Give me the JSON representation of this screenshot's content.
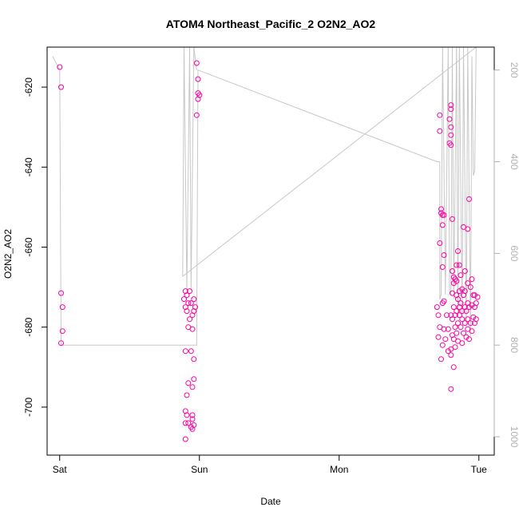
{
  "chart_data": {
    "type": "scatter",
    "title": "ATOM4 Northeast_Pacific_2 O2N2_AO2",
    "xlabel": "Date",
    "ylabel": "O2N2_AO2",
    "x_ticks": [
      {
        "label": "Sat",
        "value": 0
      },
      {
        "label": "Sun",
        "value": 1
      },
      {
        "label": "Mon",
        "value": 2
      },
      {
        "label": "Tue",
        "value": 3
      }
    ],
    "xlim": [
      -0.09,
      3.11
    ],
    "ylim": [
      -712,
      -610
    ],
    "y_ticks": [
      -620,
      -640,
      -660,
      -680,
      -700
    ],
    "right_axis": {
      "ylim": [
        1040,
        150
      ],
      "ticks": [
        200,
        400,
        600,
        800,
        1000
      ],
      "color": "#b0b0b0"
    },
    "colors": {
      "points": "#ff00a0",
      "line": "#c8c8c8",
      "axis": "#000000",
      "right_axis": "#b0b0b0"
    },
    "series": [
      {
        "kind": "points",
        "points": [
          [
            0.0,
            -615
          ],
          [
            0.01,
            -620
          ],
          [
            0.01,
            -671.5
          ],
          [
            0.02,
            -675
          ],
          [
            0.02,
            -681
          ],
          [
            0.01,
            -684
          ],
          [
            0.9,
            -671
          ],
          [
            0.91,
            -672
          ],
          [
            0.89,
            -673
          ],
          [
            0.92,
            -674
          ],
          [
            0.9,
            -675
          ],
          [
            0.91,
            -676
          ],
          [
            0.93,
            -671
          ],
          [
            0.94,
            -674
          ],
          [
            0.95,
            -677
          ],
          [
            0.93,
            -678
          ],
          [
            0.96,
            -676
          ],
          [
            0.97,
            -675
          ],
          [
            0.96,
            -673
          ],
          [
            0.92,
            -680
          ],
          [
            0.95,
            -680.5
          ],
          [
            0.9,
            -686
          ],
          [
            0.94,
            -686
          ],
          [
            0.96,
            -688
          ],
          [
            0.92,
            -694
          ],
          [
            0.96,
            -693
          ],
          [
            0.95,
            -695
          ],
          [
            0.91,
            -697
          ],
          [
            0.9,
            -701
          ],
          [
            0.91,
            -702
          ],
          [
            0.95,
            -702
          ],
          [
            0.95,
            -703
          ],
          [
            0.9,
            -704
          ],
          [
            0.92,
            -704
          ],
          [
            0.94,
            -705
          ],
          [
            0.96,
            -704.5
          ],
          [
            0.95,
            -705.5
          ],
          [
            0.9,
            -708
          ],
          [
            0.98,
            -614
          ],
          [
            0.99,
            -618
          ],
          [
            0.99,
            -621.5
          ],
          [
            1.0,
            -622
          ],
          [
            0.99,
            -623
          ],
          [
            0.98,
            -627
          ],
          [
            2.72,
            -627
          ],
          [
            2.72,
            -631
          ],
          [
            2.8,
            -624.5
          ],
          [
            2.8,
            -625.5
          ],
          [
            2.79,
            -628
          ],
          [
            2.8,
            -630
          ],
          [
            2.8,
            -632
          ],
          [
            2.79,
            -634
          ],
          [
            2.8,
            -634.5
          ],
          [
            2.73,
            -650.5
          ],
          [
            2.73,
            -651.5
          ],
          [
            2.74,
            -652
          ],
          [
            2.75,
            -652
          ],
          [
            2.74,
            -654.5
          ],
          [
            2.72,
            -659
          ],
          [
            2.75,
            -662
          ],
          [
            2.74,
            -665
          ],
          [
            2.81,
            -653
          ],
          [
            2.85,
            -661
          ],
          [
            2.89,
            -655
          ],
          [
            2.93,
            -648
          ],
          [
            2.92,
            -655.5
          ],
          [
            2.84,
            -664.5
          ],
          [
            2.86,
            -664.5
          ],
          [
            2.9,
            -666
          ],
          [
            2.81,
            -666
          ],
          [
            2.82,
            -667.5
          ],
          [
            2.87,
            -667
          ],
          [
            2.83,
            -668
          ],
          [
            2.84,
            -668.5
          ],
          [
            2.95,
            -668
          ],
          [
            2.82,
            -669
          ],
          [
            2.92,
            -669
          ],
          [
            2.94,
            -670
          ],
          [
            2.88,
            -670.5
          ],
          [
            2.86,
            -671
          ],
          [
            2.81,
            -671.5
          ],
          [
            2.9,
            -671
          ],
          [
            2.84,
            -672
          ],
          [
            2.89,
            -672
          ],
          [
            2.96,
            -672
          ],
          [
            2.97,
            -672
          ],
          [
            2.99,
            -672.5
          ],
          [
            2.75,
            -673.5
          ],
          [
            2.74,
            -674
          ],
          [
            2.85,
            -673
          ],
          [
            2.87,
            -674
          ],
          [
            2.92,
            -674
          ],
          [
            2.95,
            -674.5
          ],
          [
            2.98,
            -674
          ],
          [
            2.82,
            -675
          ],
          [
            2.86,
            -675
          ],
          [
            2.9,
            -675
          ],
          [
            2.93,
            -675
          ],
          [
            2.97,
            -675
          ],
          [
            2.84,
            -676
          ],
          [
            2.88,
            -676
          ],
          [
            2.91,
            -676
          ],
          [
            2.7,
            -675
          ],
          [
            2.71,
            -677
          ],
          [
            2.77,
            -677
          ],
          [
            2.8,
            -677
          ],
          [
            2.83,
            -677
          ],
          [
            2.86,
            -677
          ],
          [
            2.88,
            -678
          ],
          [
            2.92,
            -678
          ],
          [
            2.96,
            -677.5
          ],
          [
            2.98,
            -678
          ],
          [
            2.81,
            -678
          ],
          [
            2.85,
            -679
          ],
          [
            2.9,
            -679
          ],
          [
            2.94,
            -679
          ],
          [
            2.97,
            -679
          ],
          [
            2.72,
            -680
          ],
          [
            2.75,
            -680.5
          ],
          [
            2.78,
            -680.5
          ],
          [
            2.83,
            -680
          ],
          [
            2.87,
            -680
          ],
          [
            2.92,
            -680.5
          ],
          [
            2.95,
            -681
          ],
          [
            2.89,
            -681.5
          ],
          [
            2.84,
            -681.5
          ],
          [
            2.81,
            -682
          ],
          [
            2.71,
            -682.5
          ],
          [
            2.91,
            -682.5
          ],
          [
            2.93,
            -683
          ],
          [
            2.82,
            -683
          ],
          [
            2.76,
            -683
          ],
          [
            2.74,
            -684.5
          ],
          [
            2.85,
            -683.5
          ],
          [
            2.88,
            -684
          ],
          [
            2.8,
            -685.5
          ],
          [
            2.83,
            -685
          ],
          [
            2.78,
            -686
          ],
          [
            2.8,
            -687
          ],
          [
            2.73,
            -688
          ],
          [
            2.82,
            -690
          ],
          [
            2.8,
            -695.5
          ]
        ]
      },
      {
        "kind": "line",
        "axis": "right",
        "points": [
          [
            -0.05,
            170
          ],
          [
            0.0,
            200
          ],
          [
            0.01,
            800
          ],
          [
            0.98,
            800
          ],
          [
            0.99,
            200
          ],
          [
            2.7,
            400
          ],
          [
            2.72,
            400
          ],
          [
            2.72,
            700
          ],
          [
            2.73,
            690
          ],
          [
            2.74,
            150
          ],
          [
            2.76,
            690
          ],
          [
            2.78,
            150
          ],
          [
            2.79,
            680
          ],
          [
            2.8,
            690
          ],
          [
            2.81,
            150
          ],
          [
            2.82,
            700
          ],
          [
            2.84,
            150
          ],
          [
            2.85,
            740
          ],
          [
            2.86,
            150
          ],
          [
            2.88,
            740
          ],
          [
            2.89,
            150
          ],
          [
            2.91,
            760
          ],
          [
            2.92,
            150
          ],
          [
            2.94,
            780
          ],
          [
            2.95,
            170
          ],
          [
            2.96,
            430
          ],
          [
            2.97,
            420
          ],
          [
            2.98,
            150
          ],
          [
            0.88,
            650
          ],
          [
            0.89,
            150
          ],
          [
            0.91,
            680
          ],
          [
            0.93,
            150
          ],
          [
            0.94,
            680
          ],
          [
            0.96,
            150
          ],
          [
            0.98,
            200
          ]
        ]
      }
    ]
  }
}
